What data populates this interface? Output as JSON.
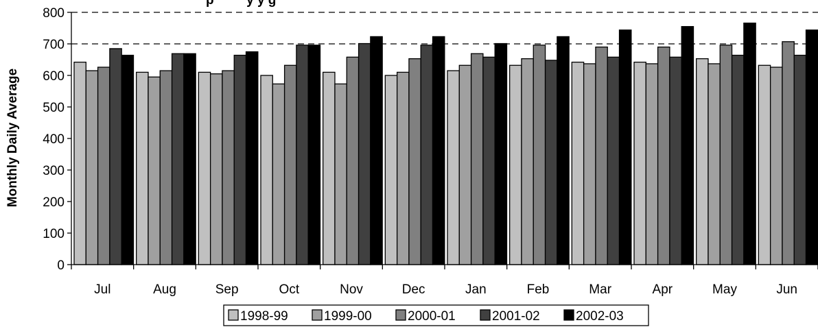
{
  "chart_data": {
    "type": "bar",
    "title": "",
    "title_fragment": "p         y y g",
    "xlabel": "",
    "ylabel": "Monthly Daily Average",
    "ylim": [
      0,
      800
    ],
    "yticks": [
      "0",
      "100",
      "200",
      "300",
      "400",
      "500",
      "600",
      "700",
      "800"
    ],
    "grid": "dashed horizontal at 700 and 800",
    "legend_position": "bottom",
    "categories": [
      "Jul",
      "Aug",
      "Sep",
      "Oct",
      "Nov",
      "Dec",
      "Jan",
      "Feb",
      "Mar",
      "Apr",
      "May",
      "Jun"
    ],
    "series": [
      {
        "name": "1998-99",
        "color": "#c0c0c0",
        "values": [
          642,
          610,
          610,
          600,
          610,
          600,
          615,
          632,
          642,
          642,
          653,
          632
        ]
      },
      {
        "name": "1999-00",
        "color": "#a0a0a0",
        "values": [
          615,
          595,
          605,
          573,
          573,
          610,
          632,
          653,
          637,
          637,
          637,
          626
        ]
      },
      {
        "name": "2000-01",
        "color": "#808080",
        "values": [
          626,
          615,
          615,
          632,
          658,
          653,
          669,
          696,
          690,
          690,
          696,
          707
        ]
      },
      {
        "name": "2001-02",
        "color": "#404040",
        "values": [
          685,
          669,
          664,
          696,
          701,
          696,
          658,
          648,
          658,
          658,
          664,
          664
        ]
      },
      {
        "name": "2002-03",
        "color": "#000000",
        "values": [
          664,
          669,
          675,
          696,
          723,
          723,
          701,
          723,
          744,
          755,
          766,
          744
        ]
      }
    ]
  }
}
